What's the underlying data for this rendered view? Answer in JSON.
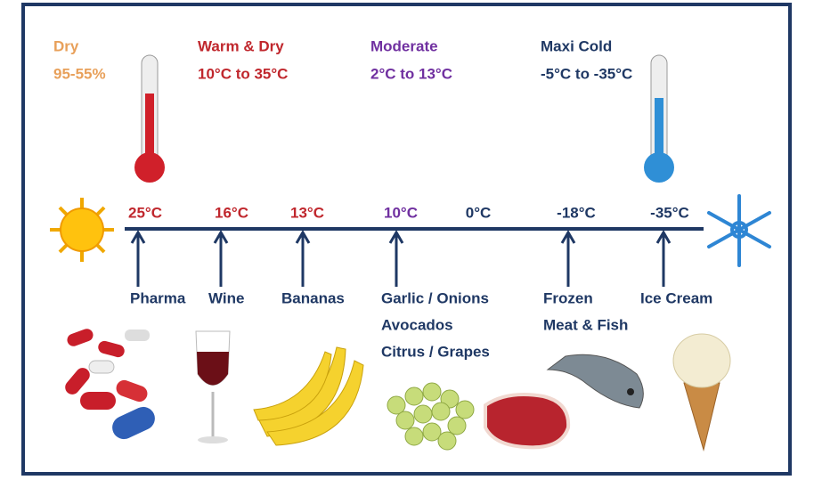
{
  "zones": [
    {
      "name": "Dry",
      "range": "95-55%"
    },
    {
      "name": "Warm & Dry",
      "range": "10°C to 35°C"
    },
    {
      "name": "Moderate",
      "range": "2°C to 13°C"
    },
    {
      "name": "Maxi Cold",
      "range": "-5°C to -35°C"
    }
  ],
  "temperatures": [
    "25°C",
    "16°C",
    "13°C",
    "10°C",
    "0°C",
    "-18°C",
    "-35°C"
  ],
  "products": [
    {
      "lines": [
        "Pharma"
      ]
    },
    {
      "lines": [
        "Wine"
      ]
    },
    {
      "lines": [
        "Bananas"
      ]
    },
    {
      "lines": [
        "Garlic / Onions",
        "Avocados",
        "Citrus / Grapes"
      ]
    },
    {
      "lines": [
        "Frozen",
        "Meat & Fish"
      ]
    },
    {
      "lines": [
        "Ice Cream"
      ]
    }
  ]
}
